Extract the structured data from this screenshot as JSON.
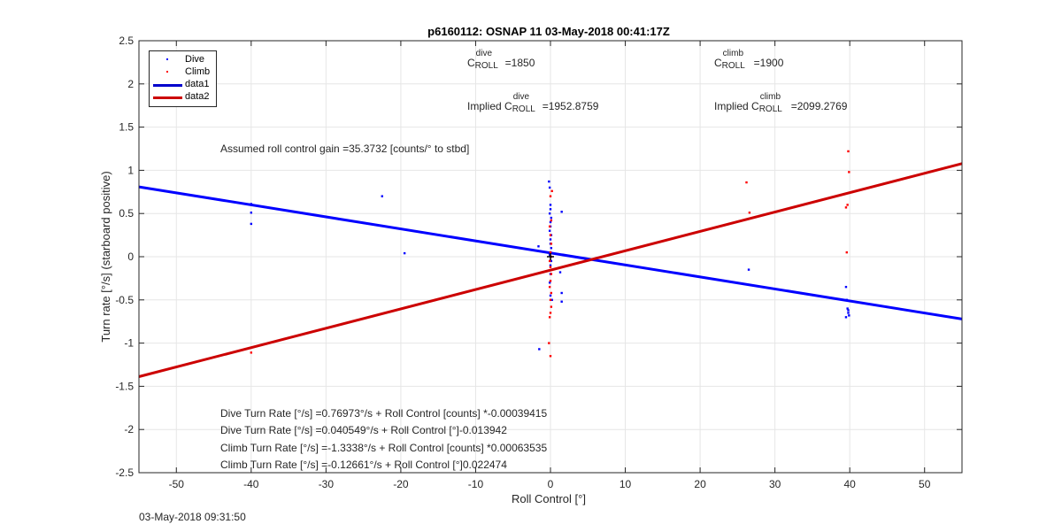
{
  "chart_data": {
    "type": "scatter",
    "title": "p6160112: OSNAP 11 03-May-2018 00:41:17Z",
    "xlabel": "Roll Control [°]",
    "ylabel": "Turn rate [°/s] (starboard positive)",
    "xlim": [
      -55,
      55
    ],
    "ylim": [
      -2.5,
      2.5
    ],
    "xticks": [
      -50,
      -40,
      -30,
      -20,
      -10,
      0,
      10,
      20,
      30,
      40,
      50
    ],
    "yticks": [
      -2.5,
      -2,
      -1.5,
      -1,
      -0.5,
      0,
      0.5,
      1,
      1.5,
      2,
      2.5
    ],
    "xtick_labels": [
      "-50",
      "-40",
      "-30",
      "-20",
      "-10",
      "0",
      "10",
      "20",
      "30",
      "40",
      "50"
    ],
    "ytick_labels": [
      "-2.5",
      "-2",
      "-1.5",
      "-1",
      "-0.5",
      "0",
      "0.5",
      "1",
      "1.5",
      "2",
      "2.5"
    ],
    "grid": true,
    "legend_position": "top-left",
    "series": [
      {
        "name": "Dive",
        "kind": "points",
        "color": "#0000ff",
        "points": [
          [
            -40,
            0.61
          ],
          [
            -40,
            0.51
          ],
          [
            -40,
            0.38
          ],
          [
            -22.5,
            0.7
          ],
          [
            -19.5,
            0.04
          ],
          [
            -1.5,
            -1.07
          ],
          [
            -1.6,
            0.12
          ],
          [
            -0.2,
            0.87
          ],
          [
            -0.1,
            0.8
          ],
          [
            0,
            0.6
          ],
          [
            0,
            0.55
          ],
          [
            -0.1,
            0.5
          ],
          [
            0.1,
            0.45
          ],
          [
            0,
            0.4
          ],
          [
            0,
            0.35
          ],
          [
            -0.1,
            0.3
          ],
          [
            0.1,
            0.25
          ],
          [
            0,
            0.2
          ],
          [
            0,
            0.15
          ],
          [
            0.1,
            0.1
          ],
          [
            0,
            0.05
          ],
          [
            -0.1,
            0.02
          ],
          [
            0.1,
            -0.05
          ],
          [
            0,
            -0.1
          ],
          [
            0,
            -0.2
          ],
          [
            -0.1,
            -0.3
          ],
          [
            0,
            -0.45
          ],
          [
            0.2,
            -0.5
          ],
          [
            1.5,
            0.52
          ],
          [
            1.5,
            -0.42
          ],
          [
            1.5,
            -0.52
          ],
          [
            1.3,
            -0.18
          ],
          [
            26.5,
            -0.15
          ],
          [
            39.5,
            -0.35
          ],
          [
            39.6,
            -0.5
          ],
          [
            39.7,
            -0.6
          ],
          [
            39.8,
            -0.65
          ],
          [
            39.5,
            -0.7
          ],
          [
            39.9,
            -0.68
          ],
          [
            39.8,
            -0.62
          ]
        ]
      },
      {
        "name": "Climb",
        "kind": "points",
        "color": "#ff0000",
        "points": [
          [
            -40,
            -1.11
          ],
          [
            -0.2,
            -1.0
          ],
          [
            0,
            -1.15
          ],
          [
            0.2,
            0.76
          ],
          [
            0,
            0.7
          ],
          [
            0.1,
            0.42
          ],
          [
            -0.1,
            0.35
          ],
          [
            0,
            0.25
          ],
          [
            0.1,
            0.15
          ],
          [
            0,
            0.05
          ],
          [
            0.1,
            0
          ],
          [
            -0.1,
            -0.05
          ],
          [
            0,
            -0.12
          ],
          [
            0.1,
            -0.2
          ],
          [
            0,
            -0.28
          ],
          [
            -0.1,
            -0.35
          ],
          [
            0.1,
            -0.42
          ],
          [
            0,
            -0.5
          ],
          [
            0.1,
            -0.58
          ],
          [
            0,
            -0.65
          ],
          [
            -0.1,
            -0.7
          ],
          [
            26.2,
            0.86
          ],
          [
            26.6,
            0.51
          ],
          [
            39.8,
            1.22
          ],
          [
            39.9,
            0.98
          ],
          [
            39.7,
            0.6
          ],
          [
            39.5,
            0.57
          ],
          [
            39.6,
            0.05
          ]
        ]
      },
      {
        "name": "data1",
        "kind": "line",
        "color": "#0000ff",
        "x": [
          -55,
          55
        ],
        "y": [
          0.8085,
          -0.7209
        ]
      },
      {
        "name": "data2",
        "kind": "line",
        "color": "#cc0000",
        "x": [
          -55,
          55
        ],
        "y": [
          -1.3883,
          1.0775
        ]
      }
    ],
    "annotations": [
      "C_ROLL^dive =1850",
      "C_ROLL^climb =1900",
      "Implied C_ROLL^dive =1952.8759",
      "Implied C_ROLL^climb =2099.2769",
      "Assumed roll control gain =35.3732 [counts/° to stbd]",
      "Dive Turn Rate [°/s] =0.76973°/s + Roll Control [counts] *-0.00039415",
      "Dive Turn Rate [°/s] =0.040549°/s + Roll Control [°]-0.013942",
      "Climb Turn Rate [°/s] =-1.3338°/s + Roll Control [counts] *0.00063535",
      "Climb Turn Rate [°/s] =-0.12661°/s + Roll Control [°]0.022474"
    ]
  },
  "labels": {
    "c_symbol": "C",
    "sub_roll": "ROLL",
    "sup_dive": "dive",
    "sup_climb": "climb",
    "c_dive_value": "=1850",
    "c_climb_value": "=1900",
    "implied_prefix": "Implied C",
    "implied_dive_value": "=1952.8759",
    "implied_climb_value": "=2099.2769",
    "gain": "Assumed roll control gain =35.3732 [counts/° to stbd]",
    "eq1": "Dive Turn Rate [°/s] =0.76973°/s + Roll Control [counts] *-0.00039415",
    "eq2": "Dive Turn Rate [°/s] =0.040549°/s + Roll Control [°]-0.013942",
    "eq3": "Climb Turn Rate [°/s] =-1.3338°/s + Roll Control [counts] *0.00063535",
    "eq4": "Climb Turn Rate [°/s] =-0.12661°/s + Roll Control [°]0.022474"
  },
  "legend": {
    "items": [
      "Dive",
      "Climb",
      "data1",
      "data2"
    ]
  },
  "footer": {
    "timestamp": "03-May-2018 09:31:50"
  }
}
